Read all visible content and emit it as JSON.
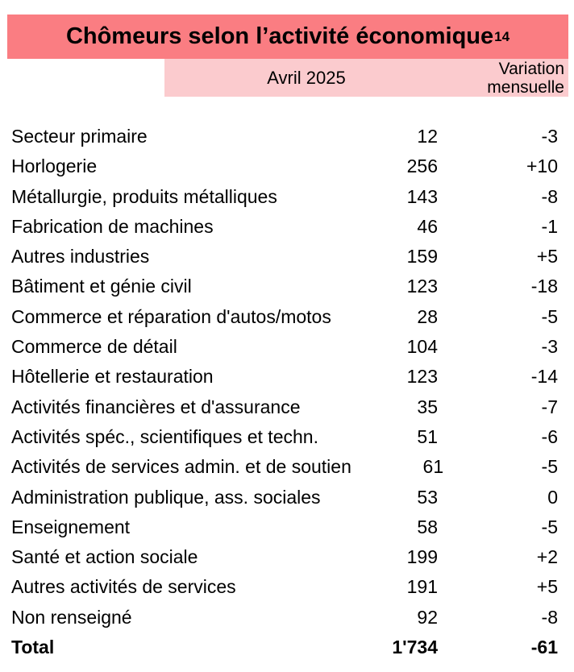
{
  "title": {
    "text": "Chômeurs selon l’activité économique",
    "footnote_marker": "14"
  },
  "header": {
    "period_label": "Avril 2025",
    "variation_label_line1": "Variation",
    "variation_label_line2": "mensuelle"
  },
  "colors": {
    "title_band": "#FA7D82",
    "header_band": "#FBCBCE",
    "text": "#000000"
  },
  "table": {
    "rows": [
      {
        "label": "Secteur primaire",
        "value": "12",
        "variation": "-3"
      },
      {
        "label": "Horlogerie",
        "value": "256",
        "variation": "+10"
      },
      {
        "label": "Métallurgie, produits métalliques",
        "value": "143",
        "variation": "-8"
      },
      {
        "label": "Fabrication de machines",
        "value": "46",
        "variation": "-1"
      },
      {
        "label": "Autres industries",
        "value": "159",
        "variation": "+5"
      },
      {
        "label": "Bâtiment et génie civil",
        "value": "123",
        "variation": "-18"
      },
      {
        "label": "Commerce et réparation d'autos/motos",
        "value": "28",
        "variation": "-5"
      },
      {
        "label": "Commerce de détail",
        "value": "104",
        "variation": "-3"
      },
      {
        "label": "Hôtellerie et restauration",
        "value": "123",
        "variation": "-14"
      },
      {
        "label": "Activités financières et d'assurance",
        "value": "35",
        "variation": "-7"
      },
      {
        "label": "Activités spéc., scientifiques et techn.",
        "value": "51",
        "variation": "-6"
      },
      {
        "label": "Activités de services admin. et de soutien",
        "value": "61",
        "variation": "-5"
      },
      {
        "label": "Administration publique, ass. sociales",
        "value": "53",
        "variation": "0"
      },
      {
        "label": "Enseignement",
        "value": "58",
        "variation": "-5"
      },
      {
        "label": "Santé et action sociale",
        "value": "199",
        "variation": "+2"
      },
      {
        "label": "Autres activités de services",
        "value": "191",
        "variation": "+5"
      },
      {
        "label": "Non renseigné",
        "value": "92",
        "variation": "-8"
      }
    ],
    "total": {
      "label": "Total",
      "value": "1'734",
      "variation": "-61"
    }
  }
}
